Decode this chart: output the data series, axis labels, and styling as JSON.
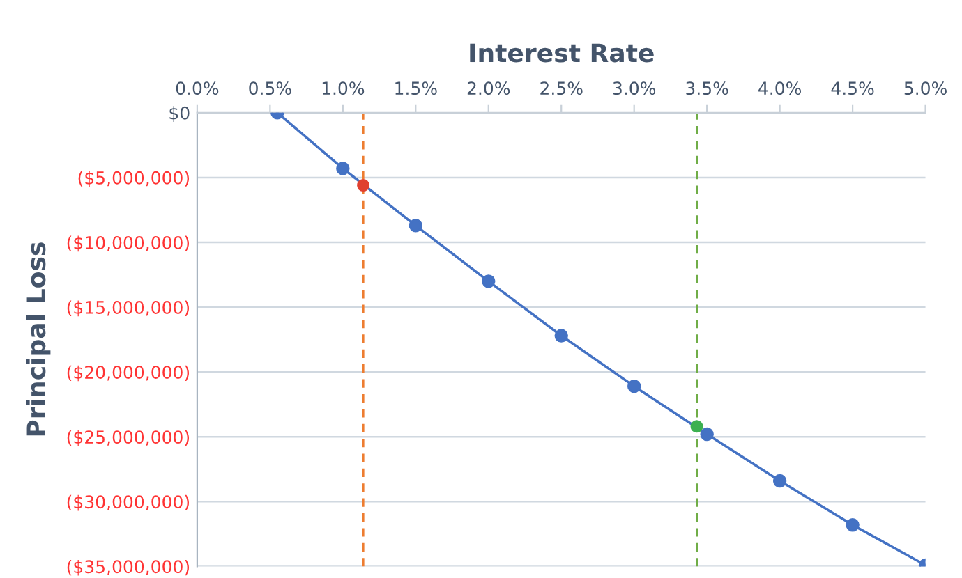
{
  "chart_data": {
    "type": "line",
    "xlabel": "Interest Rate",
    "ylabel": "Principal Loss",
    "x": [
      0.55,
      1.0,
      1.5,
      2.0,
      2.5,
      3.0,
      3.5,
      4.0,
      4.5,
      5.0
    ],
    "series": [
      {
        "color": "#4472c4",
        "values": [
          0,
          -4300000,
          -8700000,
          -13000000,
          -17200000,
          -21100000,
          -24800000,
          -28400000,
          -31800000,
          -34900000
        ]
      },
      {
        "type": "scatter",
        "color": "#e04030",
        "x": [
          1.14
        ],
        "values": [
          -5600000
        ]
      },
      {
        "type": "scatter",
        "color": "#3cb050",
        "x": [
          3.43
        ],
        "values": [
          -24200000
        ]
      }
    ],
    "xlim": [
      0,
      5
    ],
    "xticks": [
      {
        "value": 0,
        "label": "0.0%"
      },
      {
        "value": 0.5,
        "label": "0.5%"
      },
      {
        "value": 1,
        "label": "1.0%"
      },
      {
        "value": 1.5,
        "label": "1.5%"
      },
      {
        "value": 2,
        "label": "2.0%"
      },
      {
        "value": 2.5,
        "label": "2.5%"
      },
      {
        "value": 3,
        "label": "3.0%"
      },
      {
        "value": 3.5,
        "label": "3.5%"
      },
      {
        "value": 4,
        "label": "4.0%"
      },
      {
        "value": 4.5,
        "label": "4.5%"
      },
      {
        "value": 5,
        "label": "5.0%"
      }
    ],
    "ylim": [
      -35000000,
      0
    ],
    "yticks": [
      {
        "value": 0,
        "label": "$0"
      },
      {
        "value": -5000000,
        "label": "($5,000,000)"
      },
      {
        "value": -10000000,
        "label": "($10,000,000)"
      },
      {
        "value": -15000000,
        "label": "($15,000,000)"
      },
      {
        "value": -20000000,
        "label": "($20,000,000)"
      },
      {
        "value": -25000000,
        "label": "($25,000,000)"
      },
      {
        "value": -30000000,
        "label": "($30,000,000)"
      },
      {
        "value": -35000000,
        "label": "($35,000,000)"
      }
    ],
    "ref_lines": [
      {
        "axis": "x",
        "value": 1.14,
        "color": "#ed7d31",
        "line_style": "dashed"
      },
      {
        "axis": "x",
        "value": 3.43,
        "color": "#70ad47",
        "line_style": "dashed"
      }
    ],
    "grid": "y",
    "marker": "circle",
    "line_style": "solid",
    "legend": false
  }
}
